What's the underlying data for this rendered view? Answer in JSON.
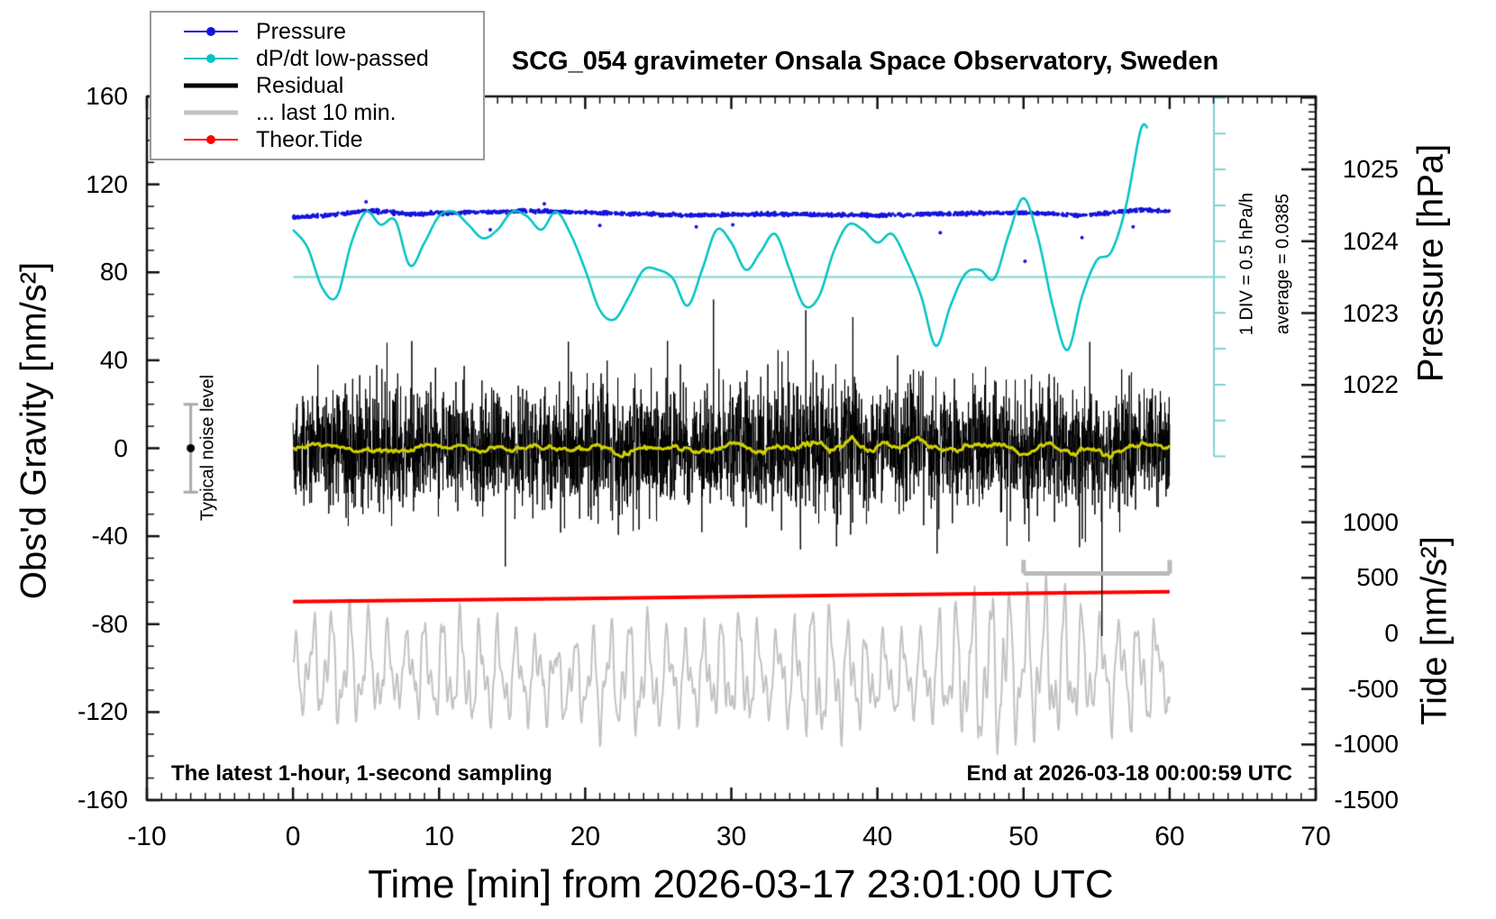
{
  "title": "SCG_054 gravimeter Onsala Space Observatory, Sweden",
  "legend": {
    "items": [
      {
        "label": "Pressure",
        "color": "#1414dd",
        "thickness": 2,
        "dot": true
      },
      {
        "label": "dP/dt low-passed",
        "color": "#00c3c3",
        "thickness": 2,
        "dot": true
      },
      {
        "label": "Residual",
        "color": "#000000",
        "thickness": 5,
        "dot": false
      },
      {
        "label": "... last 10 min.",
        "color": "#c3c3c3",
        "thickness": 5,
        "dot": false
      },
      {
        "label": "Theor.Tide",
        "color": "#ff0000",
        "thickness": 2,
        "dot": true
      }
    ]
  },
  "annotations": {
    "sampling_note": "The latest 1-hour, 1-second sampling",
    "end_note": "End at 2026-03-18 00:00:59 UTC",
    "div_note": "1 DIV = 0.5 hPa/h",
    "average_note": "average = 0.0385",
    "noise_label": "Typical noise level"
  },
  "chart_data": {
    "type": "line",
    "title": "SCG_054 gravimeter Onsala Space Observatory, Sweden",
    "x_axis": {
      "label": "Time [min] from 2026-03-17 23:01:00 UTC",
      "range": [
        -10,
        70
      ],
      "major_ticks": [
        -10,
        0,
        10,
        20,
        30,
        40,
        50,
        60,
        70
      ],
      "minor_step": 1
    },
    "y_left": {
      "label": "Obs'd Gravity [nm/s²]",
      "range": [
        -160,
        160
      ],
      "major_ticks": [
        160,
        120,
        80,
        40,
        0,
        -40,
        -80,
        -120,
        -160
      ],
      "minor_step": 10
    },
    "y_right_pressure": {
      "label": "Pressure [hPa]",
      "tick_labels": [
        1025,
        1024,
        1023,
        1022
      ],
      "minor_step": 0.1,
      "visible_range": [
        1021.0,
        1026.0
      ]
    },
    "y_right_tide": {
      "label": "Tide [nm/s²]",
      "tick_labels": [
        1000,
        500,
        0,
        -500,
        -1000,
        -1500
      ],
      "minor_step": 100,
      "visible_range": [
        -1500,
        1500
      ]
    },
    "dpdt_scale": {
      "div_value_hpa_per_h": 0.5,
      "half_divs": 5,
      "average": 0.0385
    },
    "noise_marker": {
      "t_min": -7,
      "center_gravity": 0,
      "half_range_gravity": 20
    },
    "window_bar": {
      "t0_min": 50,
      "t1_min": 60,
      "gravity_level": -57
    },
    "series": {
      "pressure": {
        "type": "scatter",
        "axis": "pressure_hPa",
        "color": "#1414dd",
        "n_points": 1400,
        "noise_sd_hpa": 0.028,
        "seed": 7,
        "mean_anchors": [
          [
            0,
            1024.33
          ],
          [
            3,
            1024.37
          ],
          [
            5,
            1024.43
          ],
          [
            8,
            1024.38
          ],
          [
            12,
            1024.4
          ],
          [
            16,
            1024.42
          ],
          [
            20,
            1024.4
          ],
          [
            24,
            1024.38
          ],
          [
            27,
            1024.36
          ],
          [
            30,
            1024.37
          ],
          [
            33,
            1024.38
          ],
          [
            36,
            1024.37
          ],
          [
            40,
            1024.36
          ],
          [
            44,
            1024.38
          ],
          [
            47,
            1024.39
          ],
          [
            50,
            1024.4
          ],
          [
            52,
            1024.38
          ],
          [
            54,
            1024.36
          ],
          [
            56,
            1024.4
          ],
          [
            58,
            1024.44
          ],
          [
            60,
            1024.42
          ]
        ],
        "outliers": [
          [
            13.5,
            1024.16
          ],
          [
            21.0,
            1024.22
          ],
          [
            27.6,
            1024.2
          ],
          [
            30.1,
            1024.23
          ],
          [
            44.3,
            1024.12
          ],
          [
            50.1,
            1023.72
          ],
          [
            54.0,
            1024.05
          ],
          [
            57.5,
            1024.2
          ],
          [
            5.0,
            1024.55
          ],
          [
            17.2,
            1024.52
          ]
        ]
      },
      "dpdt_lowpassed": {
        "type": "line",
        "axis": "dpdt_hPa_per_h",
        "color": "#00c3c3",
        "average": 0.0385,
        "points": [
          [
            0,
            0.66
          ],
          [
            1,
            0.41
          ],
          [
            2,
            -0.15
          ],
          [
            3,
            -0.27
          ],
          [
            4,
            0.48
          ],
          [
            5,
            0.91
          ],
          [
            6,
            0.73
          ],
          [
            7,
            0.79
          ],
          [
            8,
            0.16
          ],
          [
            9,
            0.48
          ],
          [
            10,
            0.85
          ],
          [
            11,
            0.91
          ],
          [
            12,
            0.73
          ],
          [
            13,
            0.54
          ],
          [
            14,
            0.66
          ],
          [
            15,
            0.91
          ],
          [
            16,
            0.85
          ],
          [
            17,
            0.66
          ],
          [
            18,
            0.91
          ],
          [
            19,
            0.6
          ],
          [
            20,
            0.1
          ],
          [
            21,
            -0.46
          ],
          [
            22,
            -0.59
          ],
          [
            23,
            -0.27
          ],
          [
            24,
            0.1
          ],
          [
            25,
            0.1
          ],
          [
            26,
            -0.02
          ],
          [
            27,
            -0.4
          ],
          [
            28,
            0.1
          ],
          [
            29,
            0.66
          ],
          [
            30,
            0.48
          ],
          [
            31,
            0.1
          ],
          [
            32,
            0.35
          ],
          [
            33,
            0.6
          ],
          [
            34,
            0.1
          ],
          [
            35,
            -0.4
          ],
          [
            36,
            -0.27
          ],
          [
            37,
            0.35
          ],
          [
            38,
            0.73
          ],
          [
            39,
            0.66
          ],
          [
            40,
            0.48
          ],
          [
            41,
            0.6
          ],
          [
            42,
            0.23
          ],
          [
            43,
            -0.27
          ],
          [
            44,
            -0.96
          ],
          [
            45,
            -0.4
          ],
          [
            46,
            0.04
          ],
          [
            47,
            0.1
          ],
          [
            48,
            -0.02
          ],
          [
            49,
            0.6
          ],
          [
            50,
            1.1
          ],
          [
            51,
            0.54
          ],
          [
            52,
            -0.4
          ],
          [
            53,
            -1.02
          ],
          [
            54,
            -0.27
          ],
          [
            55,
            0.23
          ],
          [
            56,
            0.35
          ],
          [
            57,
            0.98
          ],
          [
            58,
            2.04
          ],
          [
            58.5,
            2.08
          ]
        ]
      },
      "residual": {
        "type": "line",
        "axis": "gravity_nm_s2",
        "color": "#000000",
        "center": 0,
        "sd": 13,
        "spike_prob": 0.015,
        "spike_gain": 2.3,
        "clip": 87,
        "n_points": 3600,
        "seed": 42,
        "envelope_anchors": [
          [
            0,
            0.9
          ],
          [
            5,
            1.1
          ],
          [
            10,
            1.0
          ],
          [
            15,
            0.95
          ],
          [
            22,
            1.15
          ],
          [
            28,
            1.0
          ],
          [
            35,
            1.3
          ],
          [
            40,
            1.05
          ],
          [
            45,
            1.0
          ],
          [
            50,
            1.1
          ],
          [
            55,
            1.1
          ],
          [
            60,
            1.0
          ]
        ]
      },
      "residual_smoothed": {
        "type": "line",
        "axis": "gravity_nm_s2",
        "color": "#cfcf00",
        "window_s": 45
      },
      "residual_last10": {
        "type": "line",
        "axis": "tide_nm_s2",
        "color": "#c3c3c3",
        "seed": 99,
        "periods_min": [
          1.25,
          0.62,
          0.33
        ],
        "center_anchors": [
          [
            0,
            -300
          ],
          [
            10,
            -350
          ],
          [
            20,
            -420
          ],
          [
            30,
            -360
          ],
          [
            40,
            -400
          ],
          [
            50,
            -300
          ],
          [
            60,
            -350
          ]
        ],
        "amplitude_anchors": [
          [
            0,
            450
          ],
          [
            4,
            700
          ],
          [
            7,
            420
          ],
          [
            11,
            650
          ],
          [
            14,
            550
          ],
          [
            18,
            420
          ],
          [
            23,
            720
          ],
          [
            27,
            480
          ],
          [
            30,
            660
          ],
          [
            33,
            450
          ],
          [
            36,
            820
          ],
          [
            39,
            520
          ],
          [
            43,
            480
          ],
          [
            47,
            950
          ],
          [
            50,
            820
          ],
          [
            52,
            870
          ],
          [
            55,
            560
          ],
          [
            58,
            660
          ],
          [
            60,
            520
          ]
        ]
      },
      "theor_tide": {
        "type": "line",
        "axis": "tide_nm_s2",
        "color": "#ff0000",
        "points": [
          [
            0,
            285
          ],
          [
            10,
            300
          ],
          [
            20,
            315
          ],
          [
            30,
            330
          ],
          [
            40,
            346
          ],
          [
            50,
            361
          ],
          [
            60,
            376
          ]
        ]
      }
    }
  }
}
